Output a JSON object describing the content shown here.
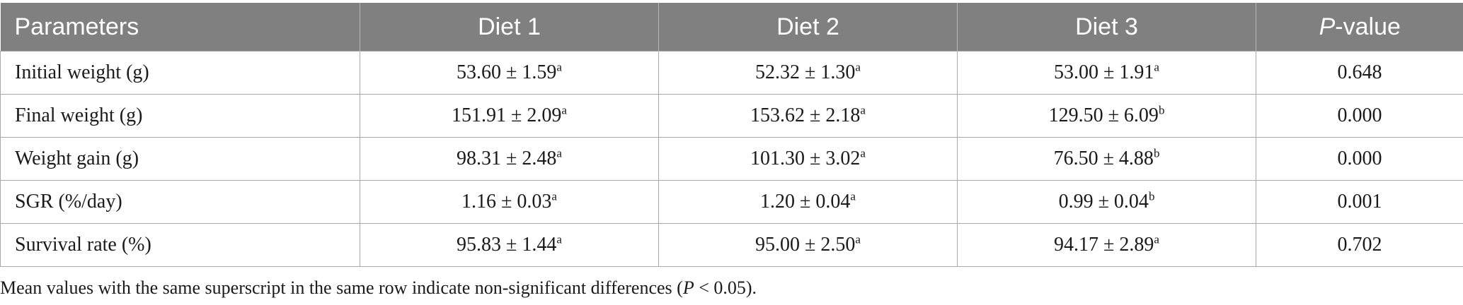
{
  "table": {
    "headers": [
      "Parameters",
      "Diet 1",
      "Diet 2",
      "Diet 3",
      "-value"
    ],
    "p_header_italic": "P",
    "rows": [
      {
        "label": "Initial weight (g)",
        "cells": [
          {
            "value": "53.60 ± 1.59",
            "sup": "a"
          },
          {
            "value": "52.32 ± 1.30",
            "sup": "a"
          },
          {
            "value": "53.00 ± 1.91",
            "sup": "a"
          }
        ],
        "p": "0.648"
      },
      {
        "label": "Final weight (g)",
        "cells": [
          {
            "value": "151.91 ± 2.09",
            "sup": "a"
          },
          {
            "value": "153.62 ± 2.18",
            "sup": "a"
          },
          {
            "value": "129.50 ± 6.09",
            "sup": "b"
          }
        ],
        "p": "0.000"
      },
      {
        "label": "Weight gain (g)",
        "cells": [
          {
            "value": "98.31 ± 2.48",
            "sup": "a"
          },
          {
            "value": "101.30 ± 3.02",
            "sup": "a"
          },
          {
            "value": "76.50 ± 4.88",
            "sup": "b"
          }
        ],
        "p": "0.000"
      },
      {
        "label": "SGR (%/day)",
        "cells": [
          {
            "value": "1.16 ± 0.03",
            "sup": "a"
          },
          {
            "value": "1.20 ± 0.04",
            "sup": "a"
          },
          {
            "value": "0.99 ± 0.04",
            "sup": "b"
          }
        ],
        "p": "0.001"
      },
      {
        "label": "Survival rate (%)",
        "cells": [
          {
            "value": "95.83 ± 1.44",
            "sup": "a"
          },
          {
            "value": "95.00 ± 2.50",
            "sup": "a"
          },
          {
            "value": "94.17 ± 2.89",
            "sup": "a"
          }
        ],
        "p": "0.702"
      }
    ]
  },
  "footnote": {
    "before": "Mean values with the same superscript in the same row indicate non-significant differences (",
    "italic": "P",
    "after": " < 0.05)."
  }
}
